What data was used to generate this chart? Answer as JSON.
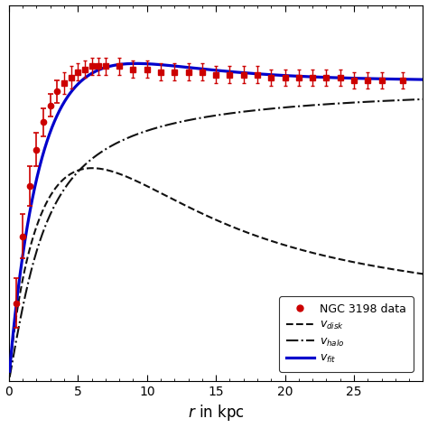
{
  "title": "",
  "xlabel": "$r$ in kpc",
  "ylabel": "",
  "xlim": [
    0,
    30
  ],
  "ylim": [
    0,
    1.35
  ],
  "x_ticks": [
    0,
    5,
    10,
    15,
    20,
    25
  ],
  "legend_entries": [
    "NGC 3198 data",
    "$v_{disk}$",
    "$v_{halo}$",
    "$v_{fit}$"
  ],
  "fit_color": "#0000cc",
  "disk_color": "#111111",
  "halo_color": "#111111",
  "data_color": "#cc0000",
  "background_color": "#ffffff",
  "ngc_r": [
    0.5,
    1.0,
    1.5,
    2.0,
    2.5,
    3.0,
    3.5,
    4.0,
    4.5,
    5.0,
    5.5,
    6.0,
    6.5,
    7.0,
    8.0,
    9.0,
    10.0,
    11.0,
    12.0,
    13.0,
    14.0,
    15.0,
    16.0,
    17.0,
    18.0,
    19.0,
    20.0,
    21.0,
    22.0,
    23.0,
    24.0,
    25.0,
    26.0,
    27.0,
    28.5
  ],
  "ngc_v": [
    0.28,
    0.52,
    0.7,
    0.83,
    0.93,
    0.99,
    1.04,
    1.07,
    1.09,
    1.11,
    1.12,
    1.13,
    1.13,
    1.13,
    1.13,
    1.12,
    1.12,
    1.11,
    1.11,
    1.11,
    1.11,
    1.1,
    1.1,
    1.1,
    1.1,
    1.09,
    1.09,
    1.09,
    1.09,
    1.09,
    1.09,
    1.08,
    1.08,
    1.08,
    1.08
  ],
  "ngc_err": [
    0.09,
    0.08,
    0.07,
    0.06,
    0.05,
    0.04,
    0.04,
    0.04,
    0.04,
    0.03,
    0.03,
    0.03,
    0.03,
    0.03,
    0.03,
    0.03,
    0.03,
    0.03,
    0.03,
    0.03,
    0.03,
    0.03,
    0.03,
    0.03,
    0.03,
    0.03,
    0.03,
    0.03,
    0.03,
    0.03,
    0.03,
    0.03,
    0.03,
    0.03,
    0.03
  ],
  "ngc_markers": [
    "o",
    "o",
    "o",
    "o",
    "o",
    "o",
    "o",
    "s",
    "s",
    "s",
    "s",
    "s",
    "s",
    "s",
    "s",
    "s",
    "s",
    "s",
    "s",
    "s",
    "s",
    "s",
    "s",
    "s",
    "s",
    "s",
    "s",
    "s",
    "s",
    "s",
    "s",
    "s",
    "s",
    "s",
    "s"
  ],
  "disk_params": {
    "v_max": 0.72,
    "r_peak": 3.0
  },
  "halo_params": {
    "v_inf": 1.02,
    "r_c": 1.5
  },
  "figsize": [
    4.74,
    4.74
  ],
  "dpi": 100
}
